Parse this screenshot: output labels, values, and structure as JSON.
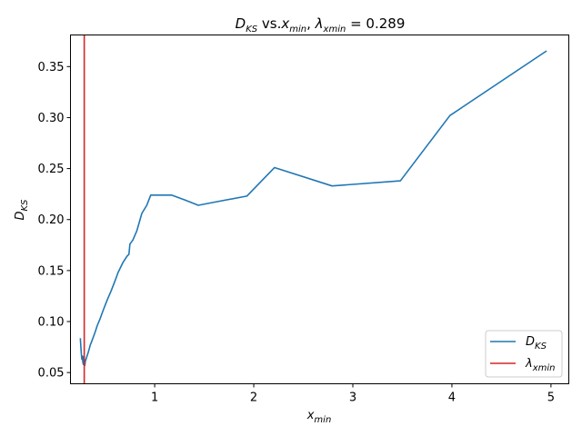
{
  "chart_data": {
    "type": "line",
    "title": {
      "prefix_main": "D",
      "prefix_sub": "KS",
      "mid1": " vs.",
      "mid_main": "x",
      "mid_sub": "min",
      "mid2": ", ",
      "lam": "λ",
      "lam_sub": "xmin",
      "eq": " = 0.289"
    },
    "xlabel": {
      "main": "x",
      "sub": "min"
    },
    "ylabel": {
      "main": "D",
      "sub": "KS"
    },
    "xlim": [
      0.15,
      5.18
    ],
    "ylim": [
      0.039,
      0.381
    ],
    "xticks": [
      1,
      2,
      3,
      4,
      5
    ],
    "yticks": [
      0.05,
      0.1,
      0.15,
      0.2,
      0.25,
      0.3,
      0.35
    ],
    "grid": false,
    "legend_position": "bottom-right",
    "series": [
      {
        "name": {
          "main": "D",
          "sub": "KS"
        },
        "color": "#1f77b4",
        "x": [
          0.25,
          0.255,
          0.26,
          0.265,
          0.27,
          0.275,
          0.28,
          0.285,
          0.289,
          0.295,
          0.3,
          0.31,
          0.33,
          0.35,
          0.37,
          0.4,
          0.42,
          0.45,
          0.48,
          0.52,
          0.56,
          0.6,
          0.63,
          0.65,
          0.68,
          0.72,
          0.74,
          0.75,
          0.78,
          0.82,
          0.87,
          0.92,
          0.96,
          1.03,
          1.17,
          1.31,
          1.44,
          1.6,
          1.93,
          2.21,
          2.79,
          3.48,
          3.98,
          4.95
        ],
        "y": [
          0.083,
          0.075,
          0.068,
          0.063,
          0.066,
          0.06,
          0.058,
          0.066,
          0.06,
          0.057,
          0.061,
          0.064,
          0.07,
          0.077,
          0.082,
          0.09,
          0.096,
          0.103,
          0.111,
          0.121,
          0.13,
          0.14,
          0.148,
          0.152,
          0.158,
          0.164,
          0.166,
          0.176,
          0.18,
          0.189,
          0.206,
          0.214,
          0.224,
          0.224,
          0.224,
          0.219,
          0.214,
          0.217,
          0.223,
          0.251,
          0.233,
          0.238,
          0.302,
          0.365
        ]
      }
    ],
    "vline": {
      "name": {
        "main": "λ",
        "sub": "xmin"
      },
      "x": 0.289,
      "color": "#d62728"
    }
  }
}
